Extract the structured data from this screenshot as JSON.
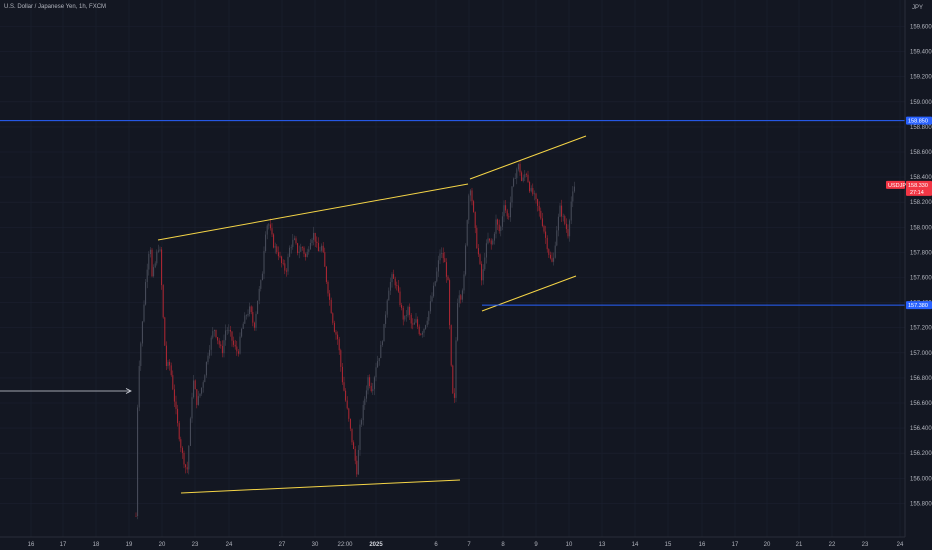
{
  "symbol_title": "U.S. Dollar / Japanese Yen, 1h, FXCM",
  "currency_badge": "JPY",
  "price_axis": [
    "159.600",
    "159.400",
    "159.200",
    "159.000",
    "158.800",
    "158.600",
    "158.400",
    "158.200",
    "158.000",
    "157.800",
    "157.600",
    "157.400",
    "157.200",
    "157.000",
    "156.800",
    "156.600",
    "156.400",
    "156.200",
    "156.000",
    "155.800"
  ],
  "time_axis": [
    {
      "label": "16",
      "bold": false
    },
    {
      "label": "17",
      "bold": false
    },
    {
      "label": "18",
      "bold": false
    },
    {
      "label": "19",
      "bold": false
    },
    {
      "label": "20",
      "bold": false
    },
    {
      "label": "23",
      "bold": false
    },
    {
      "label": "24",
      "bold": false
    },
    {
      "label": "27",
      "bold": false
    },
    {
      "label": "30",
      "bold": false
    },
    {
      "label": "22:00",
      "bold": false
    },
    {
      "label": "2025",
      "bold": true
    },
    {
      "label": "6",
      "bold": false
    },
    {
      "label": "7",
      "bold": false
    },
    {
      "label": "8",
      "bold": false
    },
    {
      "label": "9",
      "bold": false
    },
    {
      "label": "10",
      "bold": false
    },
    {
      "label": "13",
      "bold": false
    },
    {
      "label": "14",
      "bold": false
    },
    {
      "label": "15",
      "bold": false
    },
    {
      "label": "16",
      "bold": false
    },
    {
      "label": "17",
      "bold": false
    },
    {
      "label": "20",
      "bold": false
    },
    {
      "label": "21",
      "bold": false
    },
    {
      "label": "22",
      "bold": false
    },
    {
      "label": "23",
      "bold": false
    },
    {
      "label": "24",
      "bold": false
    }
  ],
  "horizontal_levels": [
    {
      "name": "upper-resistance",
      "price": 158.85,
      "label": "158.850",
      "color": "#2962ff"
    },
    {
      "name": "lower-support",
      "price": 157.38,
      "label": "157.380",
      "color": "#2962ff"
    }
  ],
  "current_price": {
    "symbol": "USDJPY",
    "price": 158.33,
    "label": "158.330",
    "countdown": "27:14",
    "color": "#f23645"
  },
  "colors": {
    "background": "#131722",
    "trendline": "#f5d547",
    "bull": "#4a4f5c",
    "bear": "#b22833",
    "grid": "#1c2030"
  },
  "icons": {
    "arrow": "right-arrow-icon"
  }
}
